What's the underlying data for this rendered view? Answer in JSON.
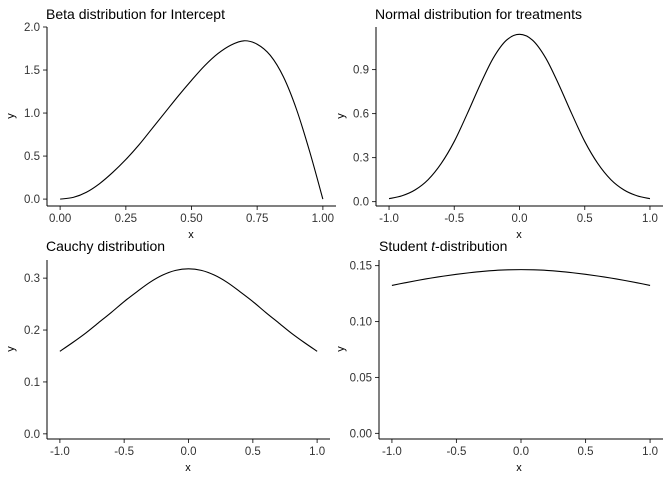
{
  "chart_data": [
    {
      "type": "line",
      "title": "Beta distribution for Intercept",
      "xlabel": "x",
      "ylabel": "y",
      "xlim": [
        -0.05,
        1.05
      ],
      "ylim": [
        -0.08,
        2.0
      ],
      "xticks": [
        0.0,
        0.25,
        0.5,
        0.75,
        1.0
      ],
      "xtick_labels": [
        "0.00",
        "0.25",
        "0.50",
        "0.75",
        "1.00"
      ],
      "yticks": [
        0.0,
        0.5,
        1.0,
        1.5,
        2.0
      ],
      "ytick_labels": [
        "0.0",
        "0.5",
        "1.0",
        "1.5",
        "2.0"
      ],
      "grid": false,
      "series": [
        {
          "x": [
            0.0,
            0.05,
            0.1,
            0.15,
            0.2,
            0.25,
            0.3,
            0.35,
            0.4,
            0.45,
            0.5,
            0.55,
            0.6,
            0.65,
            0.7,
            0.75,
            0.8,
            0.85,
            0.9,
            0.95,
            1.0
          ],
          "y": [
            0.0,
            0.02,
            0.08,
            0.18,
            0.31,
            0.46,
            0.63,
            0.82,
            1.01,
            1.2,
            1.38,
            1.55,
            1.69,
            1.79,
            1.84,
            1.8,
            1.67,
            1.42,
            1.04,
            0.55,
            0.0
          ]
        }
      ]
    },
    {
      "type": "line",
      "title": "Normal distribution for treatments",
      "xlabel": "x",
      "ylabel": "y",
      "xlim": [
        -1.1,
        1.1
      ],
      "ylim": [
        -0.03,
        1.19
      ],
      "xticks": [
        -1.0,
        -0.5,
        0.0,
        0.5,
        1.0
      ],
      "xtick_labels": [
        "-1.0",
        "-0.5",
        "0.0",
        "0.5",
        "1.0"
      ],
      "yticks": [
        0.0,
        0.3,
        0.6,
        0.9
      ],
      "ytick_labels": [
        "0.0",
        "0.3",
        "0.6",
        "0.9"
      ],
      "grid": false,
      "series": [
        {
          "x": [
            -1.0,
            -0.9,
            -0.8,
            -0.7,
            -0.6,
            -0.5,
            -0.4,
            -0.3,
            -0.2,
            -0.1,
            0.0,
            0.1,
            0.2,
            0.3,
            0.4,
            0.5,
            0.6,
            0.7,
            0.8,
            0.9,
            1.0
          ],
          "y": [
            0.02,
            0.04,
            0.08,
            0.15,
            0.26,
            0.41,
            0.6,
            0.8,
            0.98,
            1.1,
            1.14,
            1.1,
            0.98,
            0.8,
            0.6,
            0.41,
            0.26,
            0.15,
            0.08,
            0.04,
            0.02
          ]
        }
      ]
    },
    {
      "type": "line",
      "title": "Cauchy distribution",
      "xlabel": "x",
      "ylabel": "y",
      "xlim": [
        -1.1,
        1.1
      ],
      "ylim": [
        -0.01,
        0.335
      ],
      "xticks": [
        -1.0,
        -0.5,
        0.0,
        0.5,
        1.0
      ],
      "xtick_labels": [
        "-1.0",
        "-0.5",
        "0.0",
        "0.5",
        "1.0"
      ],
      "yticks": [
        0.0,
        0.1,
        0.2,
        0.3
      ],
      "ytick_labels": [
        "0.0",
        "0.1",
        "0.2",
        "0.3"
      ],
      "grid": false,
      "series": [
        {
          "x": [
            -1.0,
            -0.9,
            -0.8,
            -0.7,
            -0.6,
            -0.5,
            -0.4,
            -0.3,
            -0.2,
            -0.1,
            0.0,
            0.1,
            0.2,
            0.3,
            0.4,
            0.5,
            0.6,
            0.7,
            0.8,
            0.9,
            1.0
          ],
          "y": [
            0.159,
            0.176,
            0.194,
            0.214,
            0.234,
            0.255,
            0.274,
            0.292,
            0.306,
            0.315,
            0.318,
            0.315,
            0.306,
            0.292,
            0.274,
            0.255,
            0.234,
            0.214,
            0.194,
            0.176,
            0.159
          ]
        }
      ]
    },
    {
      "type": "line",
      "title_text": "Student ",
      "title_italic": "t",
      "title_suffix": "-distribution",
      "xlabel": "x",
      "ylabel": "y",
      "xlim": [
        -1.1,
        1.1
      ],
      "ylim": [
        -0.005,
        0.155
      ],
      "xticks": [
        -1.0,
        -0.5,
        0.0,
        0.5,
        1.0
      ],
      "xtick_labels": [
        "-1.0",
        "-0.5",
        "0.0",
        "0.5",
        "1.0"
      ],
      "yticks": [
        0.0,
        0.05,
        0.1,
        0.15
      ],
      "ytick_labels": [
        "0.00",
        "0.05",
        "0.10",
        "0.15"
      ],
      "grid": false,
      "series": [
        {
          "x": [
            -1.0,
            -0.9,
            -0.8,
            -0.7,
            -0.6,
            -0.5,
            -0.4,
            -0.3,
            -0.2,
            -0.1,
            0.0,
            0.1,
            0.2,
            0.3,
            0.4,
            0.5,
            0.6,
            0.7,
            0.8,
            0.9,
            1.0
          ],
          "y": [
            0.1323,
            0.1346,
            0.1368,
            0.1388,
            0.1406,
            0.1422,
            0.1436,
            0.1448,
            0.1457,
            0.1462,
            0.1464,
            0.1462,
            0.1457,
            0.1448,
            0.1436,
            0.1422,
            0.1406,
            0.1388,
            0.1368,
            0.1346,
            0.1323
          ]
        }
      ]
    }
  ]
}
